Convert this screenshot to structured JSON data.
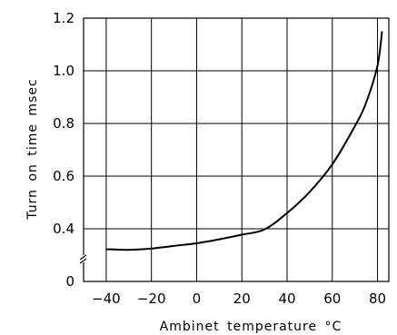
{
  "chart_data": {
    "type": "line",
    "xlabel": "Ambinet temperature °C",
    "ylabel": "Turn on time msec",
    "xlim": [
      -50,
      85
    ],
    "ylim": [
      0,
      1.2
    ],
    "x_ticks": [
      -40,
      -20,
      0,
      20,
      40,
      60,
      80
    ],
    "x_tick_labels": [
      "−40",
      "−20",
      "0",
      "20",
      "40",
      "60",
      "80"
    ],
    "y_ticks": [
      0,
      0.4,
      0.6,
      0.8,
      1.0,
      1.2
    ],
    "y_tick_labels": [
      "0",
      "0.4",
      "0.6",
      "0.8",
      "1.0",
      "1.2"
    ],
    "y_axis_break": "between 0 and 0.4",
    "grid": true,
    "series": [
      {
        "x": [
          -40,
          -30,
          -20,
          -10,
          0,
          10,
          20,
          30,
          40,
          50,
          60,
          70,
          75,
          80,
          82
        ],
        "y": [
          0.245,
          0.24,
          0.25,
          0.27,
          0.29,
          0.32,
          0.355,
          0.395,
          0.46,
          0.54,
          0.645,
          0.79,
          0.88,
          1.02,
          1.15
        ]
      }
    ]
  }
}
